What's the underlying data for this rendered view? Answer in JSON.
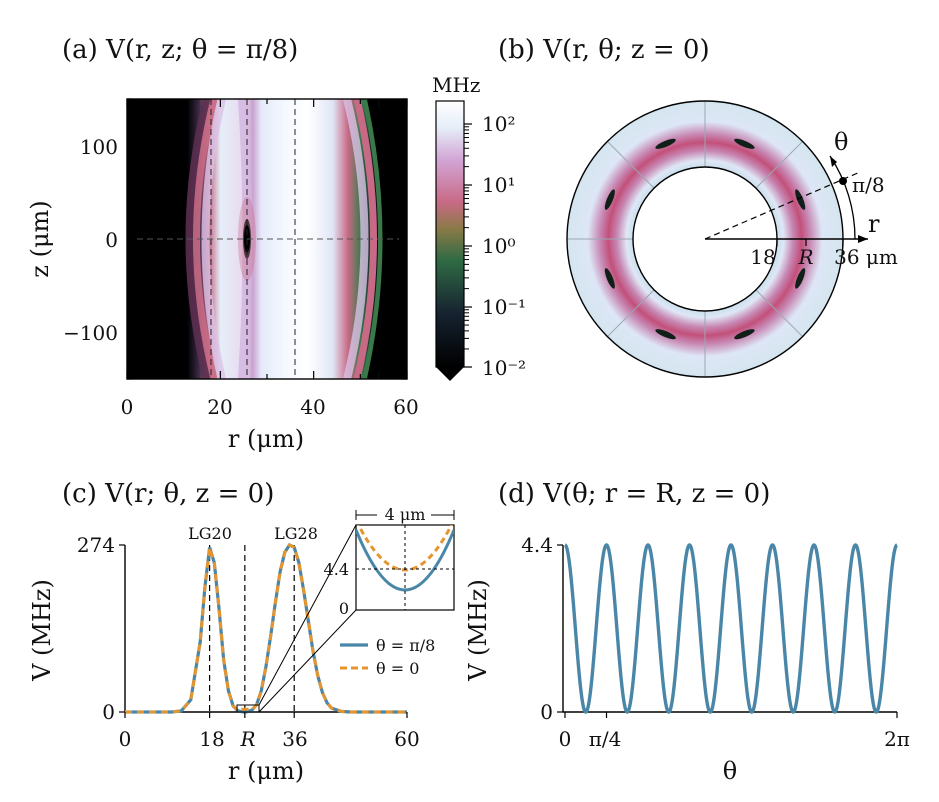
{
  "panels": {
    "a": {
      "title": "(a) V(r, z; θ = π/8)",
      "xlabel": "r (μm)",
      "ylabel": "z (μm)",
      "xticks": [
        "0",
        "20",
        "40",
        "60"
      ],
      "yticks": [
        "100",
        "0",
        "−100"
      ],
      "colorbar": {
        "unit": "MHz",
        "ticks": [
          "10²",
          "10¹",
          "10⁰",
          "10⁻¹",
          "10⁻²"
        ]
      }
    },
    "b": {
      "title": "(b) V(r, θ; z = 0)",
      "theta_label": "θ",
      "angle_label": "π/8",
      "r_label": "r",
      "radial_ticks": [
        "18",
        "R",
        "36 μm"
      ]
    },
    "c": {
      "title": "(c) V(r; θ, z = 0)",
      "xlabel": "r (μm)",
      "ylabel": "V (MHz)",
      "xticks": [
        "0",
        "18",
        "R",
        "36",
        "60"
      ],
      "yticks": [
        "274",
        "0"
      ],
      "peak_labels": [
        "LG20",
        "LG28"
      ],
      "inset": {
        "width_label": "4 μm",
        "yticks": [
          "4.4",
          "0"
        ]
      },
      "legend": [
        "θ = π/8",
        "θ = 0"
      ]
    },
    "d": {
      "title": "(d) V(θ; r = R, z = 0)",
      "xlabel": "θ",
      "ylabel": "V (MHz)",
      "xticks": [
        "0",
        "π/4",
        "2π"
      ],
      "yticks": [
        "4.4",
        "0"
      ]
    }
  },
  "chart_data": [
    {
      "type": "heatmap",
      "title": "(a) V(r, z; θ = π/8)",
      "xlabel": "r (μm)",
      "ylabel": "z (μm)",
      "xlim": [
        0,
        60
      ],
      "ylim": [
        -150,
        150
      ],
      "color_scale": "log",
      "color_range_MHz": [
        0.01,
        274
      ],
      "colorbar_label": "MHz",
      "colormap_stops": [
        "#000000",
        "#1a2a3a",
        "#3f7a3a",
        "#c86a7a",
        "#d9a7d6",
        "#e9f0fb",
        "#ffffff"
      ],
      "guide_lines_r_um": [
        18,
        25.5,
        36
      ],
      "guide_line_z_um": 0
    },
    {
      "type": "heatmap",
      "title": "(b) V(r, θ; z = 0)",
      "inner_radius_um": 18,
      "outer_radius_um": 36,
      "R_um": 25.5,
      "angle_marker": "π/8",
      "minima_count": 8,
      "ring_colors": [
        "#e6eef8",
        "#c96a86",
        "#101a1a"
      ]
    },
    {
      "type": "line",
      "title": "(c) V(r; θ, z = 0)",
      "xlabel": "r (μm)",
      "ylabel": "V (MHz)",
      "xlim": [
        0,
        60
      ],
      "ylim": [
        0,
        274
      ],
      "x": [
        0,
        5,
        10,
        12,
        14,
        16,
        17,
        18,
        19,
        20,
        21,
        22,
        23,
        24,
        25,
        25.5,
        26,
        27,
        28,
        29,
        30,
        31,
        32,
        33,
        34,
        35,
        36,
        37,
        38,
        39,
        40,
        41,
        42,
        43,
        44,
        46,
        48,
        50,
        55,
        60
      ],
      "series": [
        {
          "name": "θ = π/8",
          "color": "#4a86a8",
          "values": [
            0,
            0,
            0,
            2,
            20,
            115,
            205,
            270,
            245,
            170,
            85,
            35,
            10,
            2,
            0.4,
            0,
            0.4,
            3,
            12,
            35,
            75,
            125,
            180,
            230,
            262,
            274,
            270,
            245,
            200,
            150,
            100,
            60,
            32,
            15,
            6,
            1,
            0,
            0,
            0,
            0
          ]
        },
        {
          "name": "θ = 0",
          "color": "#e6952e",
          "dashed": true,
          "values": [
            0,
            0,
            0,
            2,
            20,
            115,
            205,
            270,
            245,
            170,
            85,
            35,
            10,
            2,
            4.4,
            4.4,
            4.4,
            3,
            12,
            35,
            75,
            125,
            180,
            230,
            262,
            274,
            270,
            245,
            200,
            150,
            100,
            60,
            32,
            15,
            6,
            1,
            0,
            0,
            0,
            0
          ]
        }
      ],
      "peaks": {
        "LG20_r_um": 18,
        "LG28_r_um": 36,
        "R_um": 25.5
      },
      "inset": {
        "x_span_um": 4,
        "ylim": [
          0,
          4.4
        ]
      }
    },
    {
      "type": "line",
      "title": "(d) V(θ; r = R, z = 0)",
      "xlabel": "θ",
      "ylabel": "V (MHz)",
      "xlim": [
        0,
        6.2832
      ],
      "ylim": [
        0,
        4.4
      ],
      "function": "4.4 · cos²(4θ)",
      "periods": 8,
      "color": "#4a86a8"
    }
  ]
}
